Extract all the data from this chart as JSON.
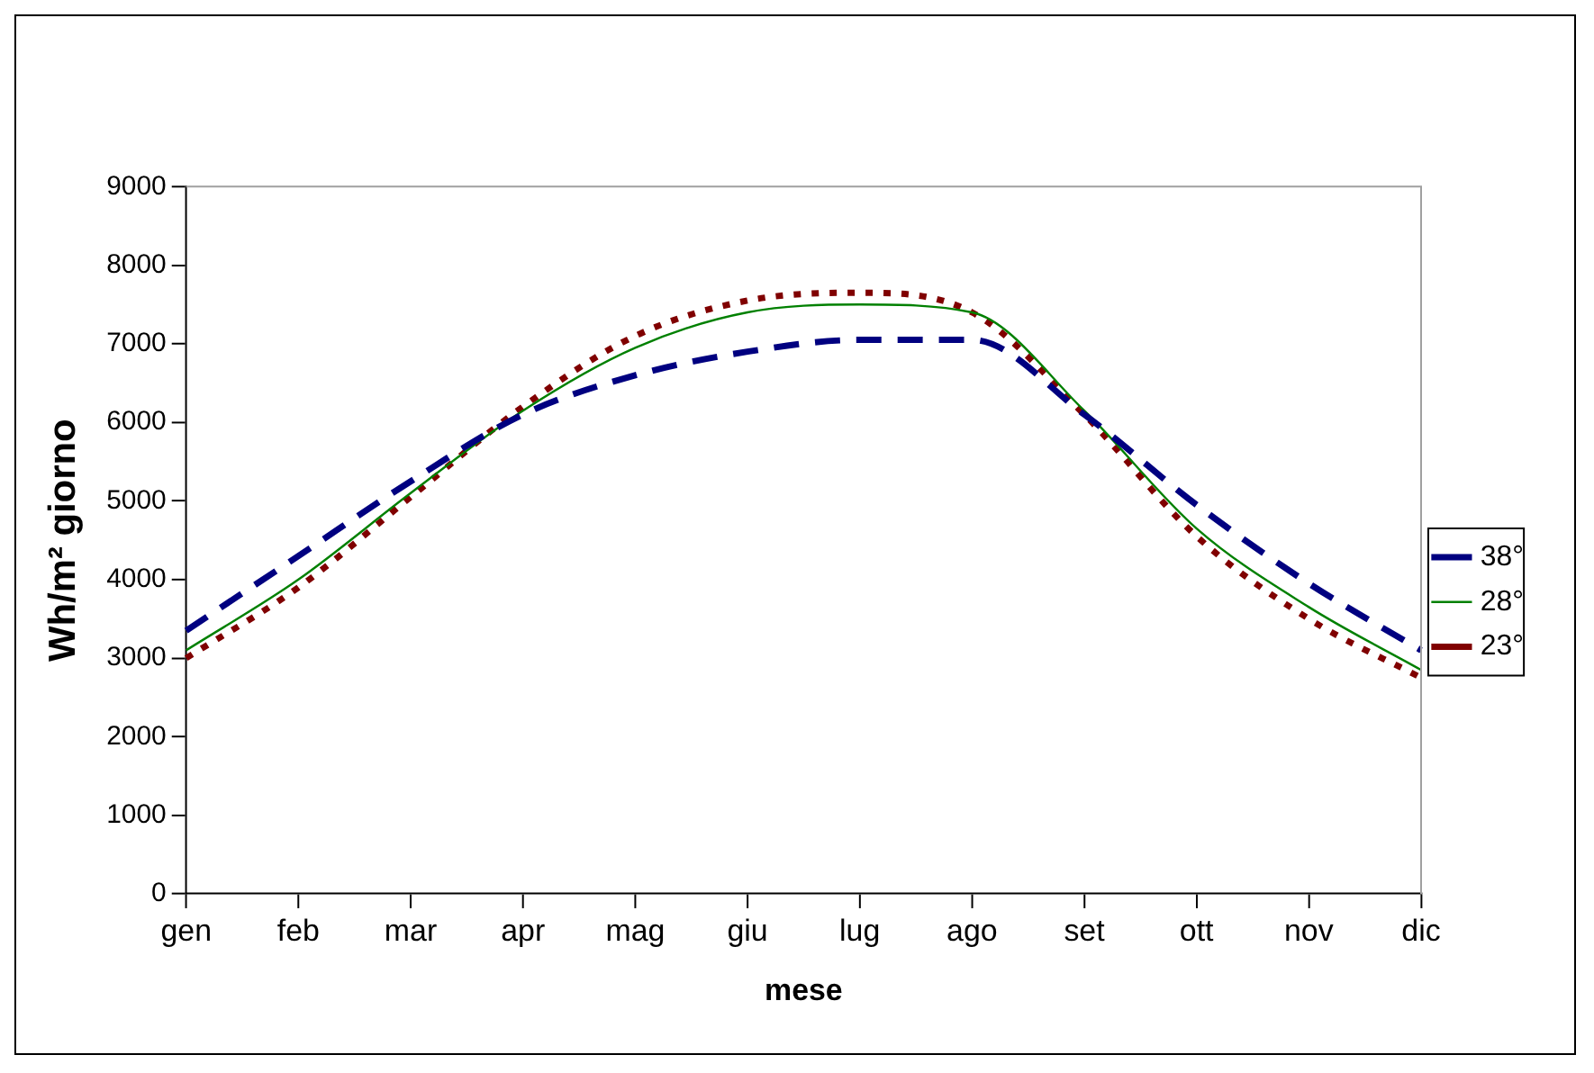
{
  "chart_data": {
    "type": "line",
    "xlabel": "mese",
    "ylabel": "Wh/m² giorno",
    "categories": [
      "gen",
      "feb",
      "mar",
      "apr",
      "mag",
      "giu",
      "lug",
      "ago",
      "set",
      "ott",
      "nov",
      "dic"
    ],
    "series": [
      {
        "name": "38°",
        "color": "#000080",
        "line_style": "dashed",
        "values": [
          3350,
          4300,
          5250,
          6100,
          6600,
          6900,
          7050,
          7050,
          6100,
          4950,
          3950,
          3100
        ]
      },
      {
        "name": "28°",
        "color": "#008000",
        "line_style": "solid",
        "values": [
          3100,
          4000,
          5100,
          6150,
          6950,
          7400,
          7500,
          7400,
          6150,
          4650,
          3650,
          2850
        ]
      },
      {
        "name": "23°",
        "color": "#800000",
        "line_style": "dotted",
        "values": [
          3000,
          3900,
          5050,
          6200,
          7100,
          7550,
          7650,
          7400,
          6100,
          4550,
          3500,
          2750
        ]
      }
    ],
    "ylim": [
      0,
      9000
    ],
    "yticks": [
      0,
      1000,
      2000,
      3000,
      4000,
      5000,
      6000,
      7000,
      8000,
      9000
    ],
    "grid": false,
    "legend": "right"
  }
}
